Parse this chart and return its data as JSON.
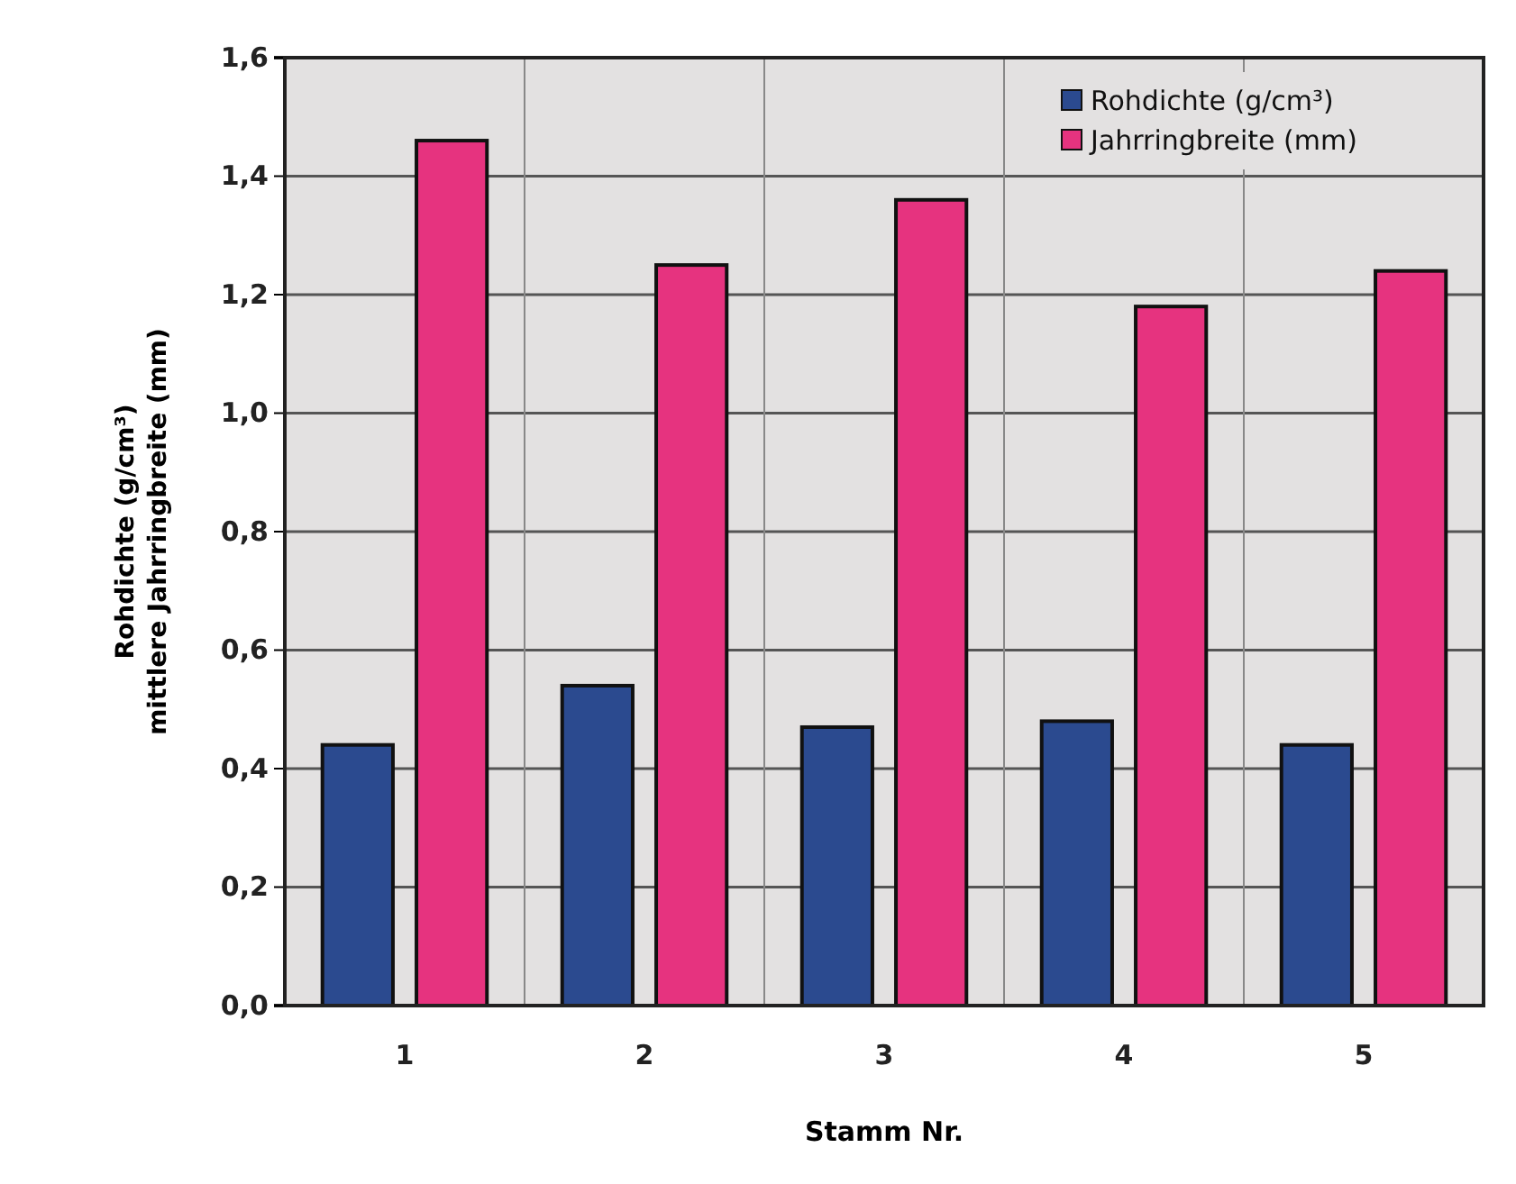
{
  "chart_data": {
    "type": "bar",
    "xlabel": "Stamm Nr.",
    "ylabel": "Rohdichte (g/cm³)\nmittlere Jahrringbreite (mm)",
    "categories": [
      "1",
      "2",
      "3",
      "4",
      "5"
    ],
    "series": [
      {
        "name": "Rohdichte  (g/cm³)",
        "color": "#2b4a8f",
        "values": [
          0.44,
          0.54,
          0.47,
          0.48,
          0.44
        ]
      },
      {
        "name": "Jahrringbreite (mm)",
        "color": "#e6337f",
        "values": [
          1.46,
          1.25,
          1.36,
          1.18,
          1.24
        ]
      }
    ],
    "ylim": [
      0,
      1.6
    ],
    "yticks": [
      {
        "value": 0,
        "label": "0,0"
      },
      {
        "value": 0.2,
        "label": "0,2"
      },
      {
        "value": 0.4,
        "label": "0,4"
      },
      {
        "value": 0.6,
        "label": "0,6"
      },
      {
        "value": 0.8,
        "label": "0,8"
      },
      {
        "value": 1,
        "label": "1,0"
      },
      {
        "value": 1.2,
        "label": "1,2"
      },
      {
        "value": 1.4,
        "label": "1,4"
      },
      {
        "value": 1.6,
        "label": "1,6"
      }
    ],
    "grid": true,
    "legend": "top right"
  }
}
